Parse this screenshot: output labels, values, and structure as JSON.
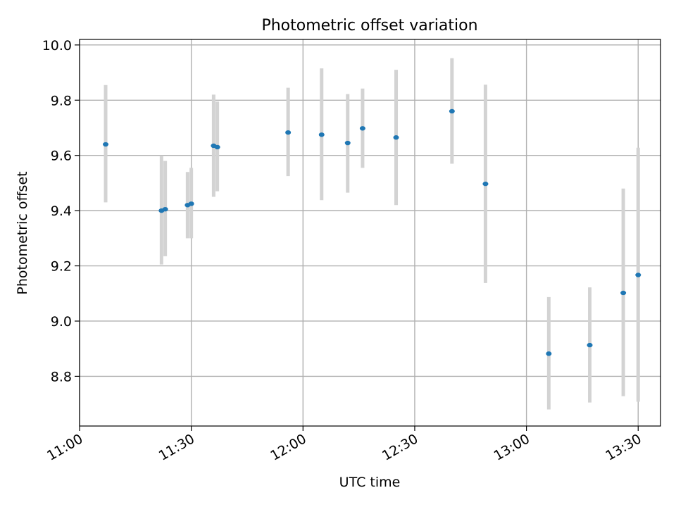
{
  "chart_data": {
    "type": "scatter",
    "title": "Photometric offset variation",
    "xlabel": "UTC time",
    "ylabel": "Photometric offset",
    "x_ticks": [
      "11:00",
      "11:30",
      "12:00",
      "12:30",
      "13:00",
      "13:30"
    ],
    "y_ticks": [
      "8.8",
      "9.0",
      "9.2",
      "9.4",
      "9.6",
      "9.8",
      "10.0"
    ],
    "xlim": [
      "11:00",
      "13:36"
    ],
    "ylim": [
      8.62,
      10.02
    ],
    "grid": true,
    "colors": {
      "point": "#1f77b4",
      "errorbar": "#d3d3d3",
      "grid": "#b0b0b0"
    },
    "points": [
      {
        "t": "11:07",
        "y": 9.64,
        "lo": 9.43,
        "hi": 9.855
      },
      {
        "t": "11:22",
        "y": 9.4,
        "lo": 9.205,
        "hi": 9.6
      },
      {
        "t": "11:23",
        "y": 9.405,
        "lo": 9.235,
        "hi": 9.58
      },
      {
        "t": "11:29",
        "y": 9.42,
        "lo": 9.3,
        "hi": 9.54
      },
      {
        "t": "11:30",
        "y": 9.425,
        "lo": 9.3,
        "hi": 9.555
      },
      {
        "t": "11:36",
        "y": 9.635,
        "lo": 9.45,
        "hi": 9.82
      },
      {
        "t": "11:37",
        "y": 9.63,
        "lo": 9.47,
        "hi": 9.795
      },
      {
        "t": "11:56",
        "y": 9.683,
        "lo": 9.525,
        "hi": 9.845
      },
      {
        "t": "12:05",
        "y": 9.675,
        "lo": 9.438,
        "hi": 9.915
      },
      {
        "t": "12:12",
        "y": 9.645,
        "lo": 9.465,
        "hi": 9.822
      },
      {
        "t": "12:16",
        "y": 9.698,
        "lo": 9.555,
        "hi": 9.842
      },
      {
        "t": "12:25",
        "y": 9.665,
        "lo": 9.42,
        "hi": 9.91
      },
      {
        "t": "12:40",
        "y": 9.76,
        "lo": 9.57,
        "hi": 9.952
      },
      {
        "t": "12:49",
        "y": 9.497,
        "lo": 9.138,
        "hi": 9.856
      },
      {
        "t": "13:06",
        "y": 8.882,
        "lo": 8.68,
        "hi": 9.087
      },
      {
        "t": "13:17",
        "y": 8.913,
        "lo": 8.705,
        "hi": 9.122
      },
      {
        "t": "13:26",
        "y": 9.102,
        "lo": 8.728,
        "hi": 9.48
      },
      {
        "t": "13:30",
        "y": 9.167,
        "lo": 8.708,
        "hi": 9.628
      }
    ]
  }
}
